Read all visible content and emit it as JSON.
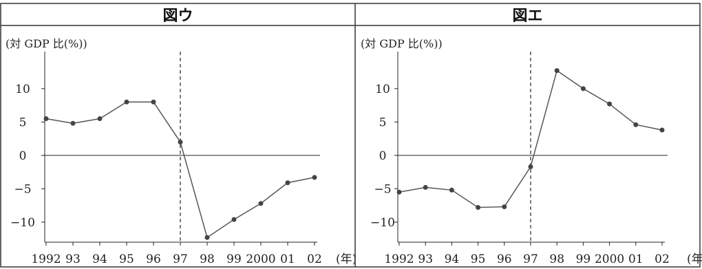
{
  "chart_data": [
    {
      "type": "line",
      "title": "図ウ",
      "unit_label": "(対 GDP 比(%))",
      "x_unit_label": "(年)",
      "categories": [
        "1992",
        "93",
        "94",
        "95",
        "96",
        "97",
        "98",
        "99",
        "2000",
        "01",
        "02"
      ],
      "values": [
        5.5,
        4.8,
        5.5,
        8.0,
        8.0,
        2.0,
        -12.3,
        -9.6,
        -7.2,
        -4.1,
        -3.3
      ],
      "ylim": [
        -13,
        14
      ],
      "yticks": [
        10,
        5,
        0,
        -5,
        -10
      ],
      "ytick_labels": [
        "10",
        "5",
        "0",
        "−5",
        "−10"
      ],
      "zero_line": true,
      "reference_line": {
        "x": "97",
        "style": "dashed"
      },
      "marker": "circle",
      "grid": false
    },
    {
      "type": "line",
      "title": "図エ",
      "unit_label": "(対 GDP 比(%))",
      "x_unit_label": "(年)",
      "categories": [
        "1992",
        "93",
        "94",
        "95",
        "96",
        "97",
        "98",
        "99",
        "2000",
        "01",
        "02"
      ],
      "values": [
        -5.5,
        -4.8,
        -5.2,
        -7.8,
        -7.7,
        -1.7,
        12.7,
        10.0,
        7.7,
        4.6,
        3.8
      ],
      "ylim": [
        -13,
        14
      ],
      "yticks": [
        10,
        5,
        0,
        -5,
        -10
      ],
      "ytick_labels": [
        "10",
        "5",
        "0",
        "−5",
        "−10"
      ],
      "zero_line": true,
      "reference_line": {
        "x": "97",
        "style": "dashed"
      },
      "marker": "circle",
      "grid": false
    }
  ],
  "colors": {
    "line": "#555555",
    "marker": "#444444",
    "axis": "#222222",
    "border": "#333333"
  }
}
